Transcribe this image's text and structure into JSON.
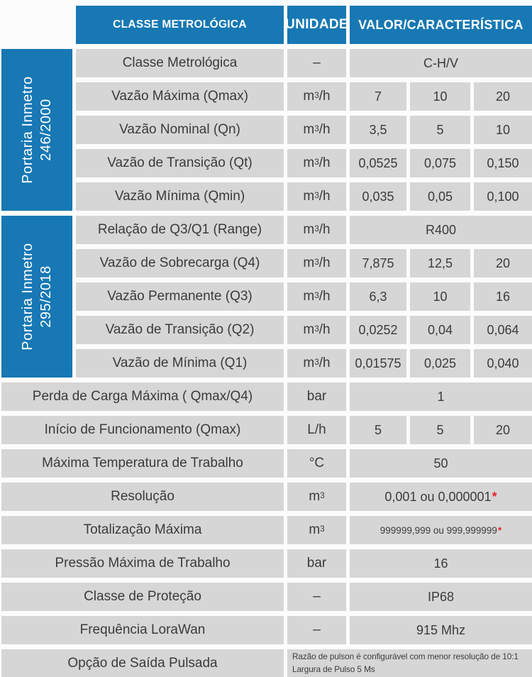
{
  "colors": {
    "header_blue": "#1778b4",
    "cell_gray": "#d6d6d6",
    "text_dark": "#3b3b3b",
    "asterisk_red": "#e52528",
    "background": "#fcfcfc",
    "header_text": "#ffffff"
  },
  "header": {
    "classe": "CLASSE METROLÓGICA",
    "unidade": "UNIDADE",
    "valor": "VALOR/CARACTERÍSTICA"
  },
  "sidebars": [
    {
      "line1": "Portaria Inmetro",
      "line2": "246/2000"
    },
    {
      "line1": "Portaria Inmetro",
      "line2": "295/2018"
    }
  ],
  "rows": [
    {
      "label": "Classe Metrológica",
      "unit": {
        "b": "–",
        "s": "",
        "r": ""
      },
      "value": "C-H/V"
    },
    {
      "label": "Vazão Máxima (Qmax)",
      "unit": {
        "b": "m",
        "s": "3",
        "r": "/h"
      },
      "values": [
        "7",
        "10",
        "20"
      ]
    },
    {
      "label": "Vazão Nominal (Qn)",
      "unit": {
        "b": "m",
        "s": "3",
        "r": "/h"
      },
      "values": [
        "3,5",
        "5",
        "10"
      ]
    },
    {
      "label": "Vazão de Transição (Qt)",
      "unit": {
        "b": "m",
        "s": "3",
        "r": "/h"
      },
      "values": [
        "0,0525",
        "0,075",
        "0,150"
      ]
    },
    {
      "label": "Vazão Mínima (Qmin)",
      "unit": {
        "b": "m",
        "s": "3",
        "r": "/h"
      },
      "values": [
        "0,035",
        "0,05",
        "0,100"
      ]
    },
    {
      "label": "Relação de Q3/Q1 (Range)",
      "unit": {
        "b": "m",
        "s": "3",
        "r": "/h"
      },
      "value": "R400"
    },
    {
      "label": "Vazão de Sobrecarga (Q4)",
      "unit": {
        "b": "m",
        "s": "3",
        "r": "/h"
      },
      "values": [
        "7,875",
        "12,5",
        "20"
      ]
    },
    {
      "label": "Vazão Permanente (Q3)",
      "unit": {
        "b": "m",
        "s": "3",
        "r": "/h"
      },
      "values": [
        "6,3",
        "10",
        "16"
      ]
    },
    {
      "label": "Vazão de Transição (Q2)",
      "unit": {
        "b": "m",
        "s": "3",
        "r": "/h"
      },
      "values": [
        "0,0252",
        "0,04",
        "0,064"
      ]
    },
    {
      "label": "Vazão de Mínima (Q1)",
      "unit": {
        "b": "m",
        "s": "3",
        "r": "/h"
      },
      "values": [
        "0,01575",
        "0,025",
        "0,040"
      ]
    },
    {
      "label": "Perda de Carga Máxima ( Qmax/Q4)",
      "unit": {
        "b": "bar",
        "s": "",
        "r": ""
      },
      "value": "1"
    },
    {
      "label": "Início de Funcionamento (Qmax)",
      "unit": {
        "b": "L/h",
        "s": "",
        "r": ""
      },
      "values": [
        "5",
        "5",
        "20"
      ]
    },
    {
      "label": "Máxima Temperatura de Trabalho",
      "unit": {
        "b": "°C",
        "s": "",
        "r": ""
      },
      "value": "50"
    },
    {
      "label": "Resolução",
      "unit": {
        "b": "m",
        "s": "3",
        "r": ""
      },
      "value": "0,001 ou 0,000001",
      "mark": "*"
    },
    {
      "label": "Totalização Máxima",
      "unit": {
        "b": "m",
        "s": "3",
        "r": ""
      },
      "value": "999999,999 ou 999,999999",
      "mark": "*"
    },
    {
      "label": "Pressão Máxima de Trabalho",
      "unit": {
        "b": "bar",
        "s": "",
        "r": ""
      },
      "value": "16"
    },
    {
      "label": "Classe de Proteção",
      "unit": {
        "b": "–",
        "s": "",
        "r": ""
      },
      "value": "IP68"
    },
    {
      "label": "Frequência LoraWan",
      "unit": {
        "b": "–",
        "s": "",
        "r": ""
      },
      "value": "915 Mhz"
    },
    {
      "label": "Opção de Saída Pulsada",
      "note_line1": "Razão de pulson é configurável com menor resolução de 10:1",
      "note_line2": "Largura de Pulso 5 Ms"
    }
  ]
}
